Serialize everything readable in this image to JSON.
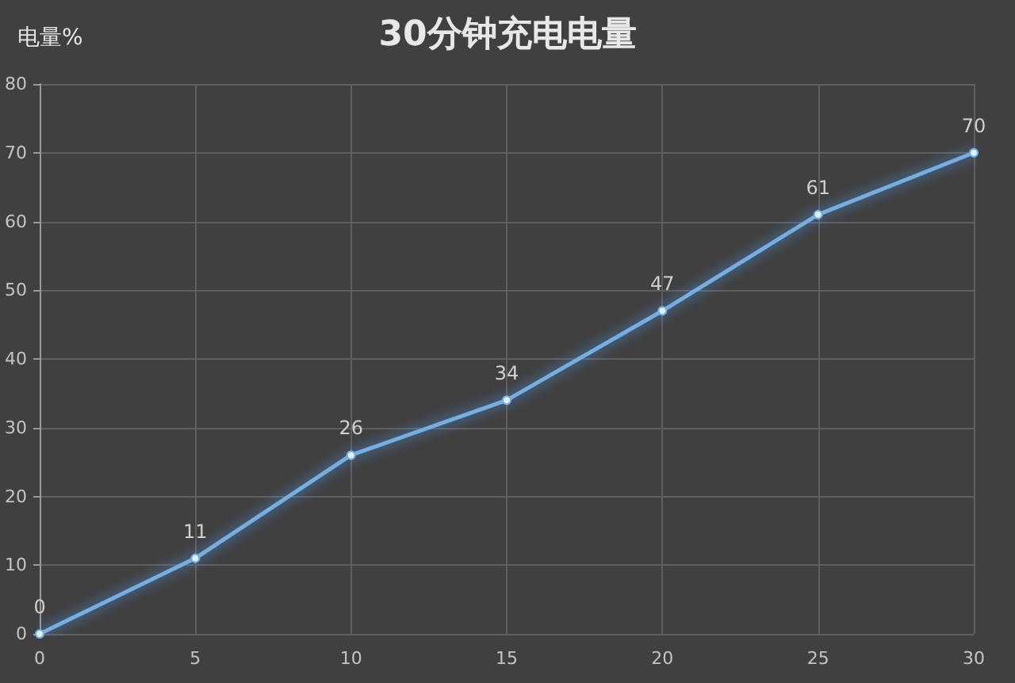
{
  "chart_data": {
    "type": "line",
    "title": "30分钟充电电量",
    "ylabel": "电量%",
    "x": [
      0,
      5,
      10,
      15,
      20,
      25,
      30
    ],
    "series": [
      {
        "color": "#74aee0",
        "values": [
          0,
          11,
          26,
          34,
          47,
          61,
          70
        ]
      }
    ],
    "xlim": [
      0,
      30
    ],
    "xticks": [
      0,
      5,
      10,
      15,
      20,
      25,
      30
    ],
    "ylim": [
      0,
      80
    ],
    "yticks": [
      0,
      10,
      20,
      30,
      40,
      50,
      60,
      70,
      80
    ],
    "grid": true,
    "marker": "circle",
    "line_style": "solid",
    "data_labels": true
  }
}
